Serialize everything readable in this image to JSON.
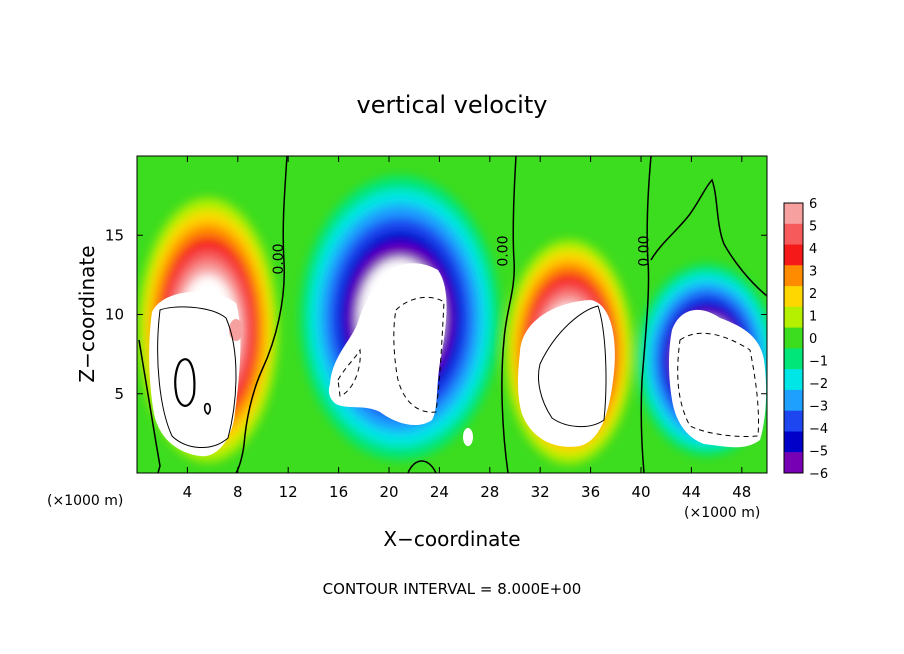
{
  "chart_data": {
    "type": "heatmap",
    "title": "vertical velocity",
    "xlabel": "X−coordinate",
    "ylabel": "Z−coordinate",
    "x_unit_left": "(×1000 m)",
    "x_unit_right": "(×1000 m)",
    "footer": "CONTOUR INTERVAL = 8.000E+00",
    "xlim": [
      0,
      50
    ],
    "ylim": [
      0,
      20
    ],
    "x_ticks": [
      "4",
      "8",
      "12",
      "16",
      "20",
      "24",
      "28",
      "32",
      "36",
      "40",
      "44",
      "48"
    ],
    "x_tick_values": [
      4,
      8,
      12,
      16,
      20,
      24,
      28,
      32,
      36,
      40,
      44,
      48
    ],
    "y_ticks": [
      "5",
      "10",
      "15"
    ],
    "y_tick_values": [
      5,
      10,
      15
    ],
    "contour_labels": [
      {
        "text": "0.00",
        "x": 11.6,
        "z": 13.5
      },
      {
        "text": "0.00",
        "x": 29.4,
        "z": 14.0
      },
      {
        "text": "0.00",
        "x": 40.6,
        "z": 14.0
      }
    ],
    "colorbar": {
      "levels": [
        "6",
        "5",
        "4",
        "3",
        "2",
        "1",
        "0",
        "−1",
        "−2",
        "−3",
        "−4",
        "−5",
        "−6"
      ],
      "colors": [
        "#f7a0a0",
        "#f75a5a",
        "#f51919",
        "#ff8c00",
        "#ffd700",
        "#b4f000",
        "#3cdc1e",
        "#00e678",
        "#00e6e6",
        "#1ea0ff",
        "#1e46f0",
        "#0000c8",
        "#7800b4"
      ]
    },
    "cells": {
      "updraft_core_colors": [
        "#ffffff",
        "#f7a0a0",
        "#f75a5a",
        "#f51919",
        "#ff8c00",
        "#ffd700",
        "#b4f000"
      ],
      "downdraft_core_colors": [
        "#ffffff",
        "#7800b4",
        "#0000c8",
        "#1e46f0",
        "#1ea0ff",
        "#00e6e6",
        "#00e678"
      ],
      "background_color": "#3cdc1e"
    }
  }
}
